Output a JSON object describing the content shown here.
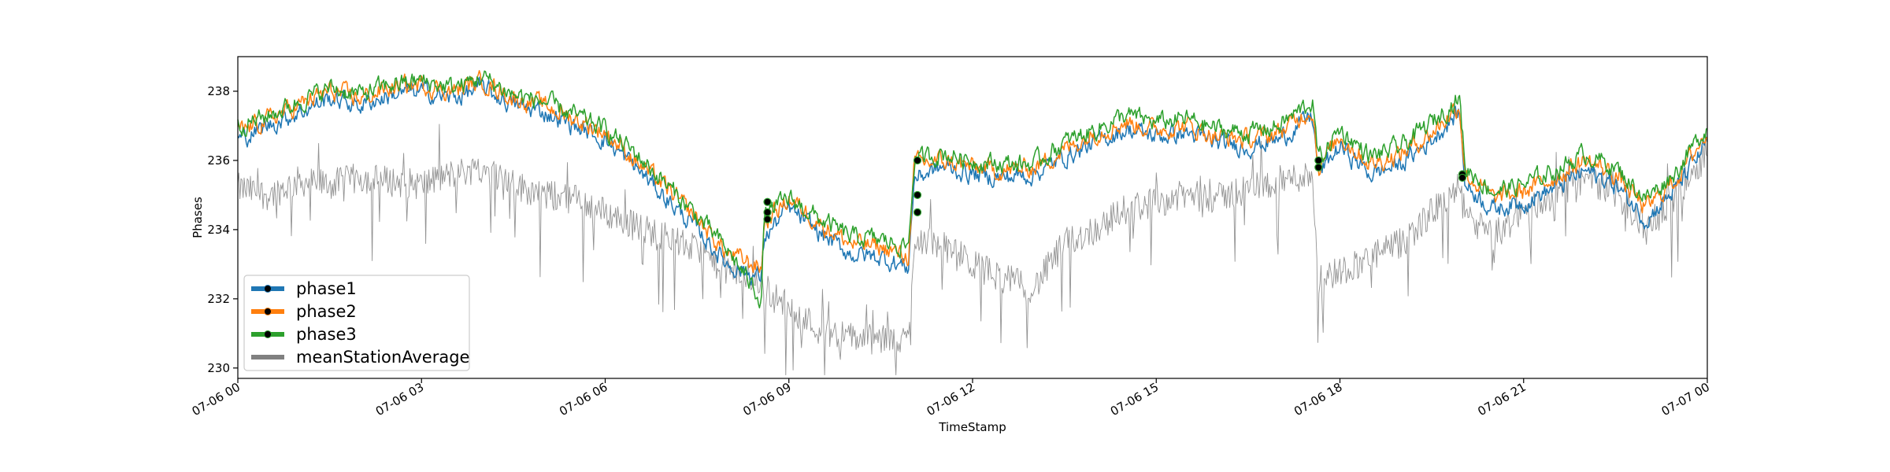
{
  "chart_data": {
    "type": "line",
    "xlabel": "TimeStamp",
    "ylabel": "Phases",
    "xlim": [
      "07-06 00",
      "07-07 00"
    ],
    "ylim": [
      229.7,
      239.0
    ],
    "x_ticks": [
      "07-06 00",
      "07-06 03",
      "07-06 06",
      "07-06 09",
      "07-06 12",
      "07-06 15",
      "07-06 18",
      "07-06 21",
      "07-07 00"
    ],
    "y_ticks": [
      230,
      232,
      234,
      236,
      238
    ],
    "legend_placement": "lower-left",
    "grid": false,
    "x_hours": [
      0,
      0.5,
      1,
      1.5,
      2,
      2.5,
      3,
      3.5,
      4,
      4.5,
      5,
      5.5,
      6,
      6.5,
      7,
      7.5,
      8,
      8.55,
      8.6,
      9,
      9.5,
      10,
      10.5,
      10.95,
      11.05,
      11.5,
      12,
      12.5,
      13,
      13.5,
      14,
      14.5,
      15,
      15.5,
      16,
      16.5,
      17,
      17.55,
      17.65,
      18,
      18.5,
      19,
      19.5,
      19.95,
      20.05,
      20.5,
      21,
      21.5,
      22,
      22.5,
      23,
      23.5,
      24
    ],
    "series": [
      {
        "name": "phase1",
        "color": "#1f77b4",
        "values": [
          236.6,
          237.0,
          237.4,
          237.8,
          237.6,
          237.9,
          238.0,
          237.8,
          238.1,
          237.6,
          237.4,
          237.0,
          236.6,
          235.8,
          234.9,
          234.0,
          233.0,
          232.6,
          233.8,
          234.6,
          233.9,
          233.3,
          233.2,
          232.9,
          235.5,
          235.8,
          235.6,
          235.5,
          235.6,
          236.1,
          236.5,
          236.9,
          236.7,
          236.8,
          236.5,
          236.4,
          236.6,
          237.3,
          235.6,
          236.4,
          235.6,
          235.9,
          236.6,
          237.4,
          235.3,
          234.6,
          234.8,
          235.2,
          235.7,
          235.3,
          234.3,
          235.2,
          236.5
        ]
      },
      {
        "name": "phase2",
        "color": "#ff7f0e",
        "values": [
          236.8,
          237.2,
          237.6,
          238.0,
          237.8,
          238.1,
          238.2,
          238.0,
          238.3,
          237.8,
          237.6,
          237.2,
          236.8,
          236.0,
          235.2,
          234.3,
          233.3,
          232.9,
          234.2,
          234.9,
          234.2,
          233.6,
          233.5,
          233.2,
          235.9,
          236.0,
          235.8,
          235.7,
          235.8,
          236.3,
          236.8,
          237.1,
          236.9,
          237.0,
          236.7,
          236.6,
          236.8,
          237.5,
          235.8,
          236.7,
          235.9,
          236.2,
          236.8,
          237.6,
          235.6,
          234.9,
          235.1,
          235.5,
          236.0,
          235.6,
          234.6,
          235.5,
          236.8
        ]
      },
      {
        "name": "phase3",
        "color": "#2ca02c",
        "values": [
          237.0,
          237.3,
          237.7,
          238.1,
          237.9,
          238.2,
          238.3,
          238.1,
          238.4,
          237.9,
          237.7,
          237.3,
          236.9,
          236.2,
          235.3,
          234.4,
          233.4,
          232.0,
          234.4,
          234.9,
          234.3,
          233.8,
          233.7,
          233.5,
          236.0,
          236.2,
          236.0,
          235.9,
          235.9,
          236.5,
          236.9,
          237.3,
          237.1,
          237.2,
          236.9,
          236.8,
          237.0,
          237.7,
          236.0,
          236.9,
          236.1,
          236.4,
          237.1,
          237.8,
          235.8,
          235.1,
          235.3,
          235.7,
          236.2,
          235.8,
          234.9,
          235.7,
          237.0
        ]
      },
      {
        "name": "meanStationAverage",
        "color": "#808080",
        "values": [
          235.2,
          235.0,
          235.4,
          235.3,
          235.5,
          235.4,
          235.3,
          235.6,
          235.8,
          235.3,
          235.0,
          234.9,
          234.5,
          234.1,
          233.8,
          233.4,
          232.8,
          232.5,
          232.2,
          231.8,
          231.1,
          230.9,
          230.8,
          230.8,
          233.8,
          233.5,
          233.0,
          232.6,
          232.3,
          233.6,
          234.0,
          234.6,
          234.8,
          235.0,
          234.9,
          235.2,
          235.4,
          235.6,
          232.6,
          232.8,
          233.2,
          233.6,
          234.5,
          235.2,
          234.4,
          233.8,
          234.5,
          235.0,
          235.5,
          235.1,
          234.0,
          235.0,
          236.3
        ]
      }
    ],
    "markers": [
      {
        "x_hour": 8.65,
        "y": 234.8
      },
      {
        "x_hour": 8.65,
        "y": 234.5
      },
      {
        "x_hour": 8.65,
        "y": 234.3
      },
      {
        "x_hour": 11.1,
        "y": 236.0
      },
      {
        "x_hour": 11.1,
        "y": 235.0
      },
      {
        "x_hour": 11.1,
        "y": 234.5
      },
      {
        "x_hour": 17.65,
        "y": 236.0
      },
      {
        "x_hour": 17.65,
        "y": 235.8
      },
      {
        "x_hour": 20.0,
        "y": 235.6
      },
      {
        "x_hour": 20.0,
        "y": 235.5
      }
    ]
  }
}
